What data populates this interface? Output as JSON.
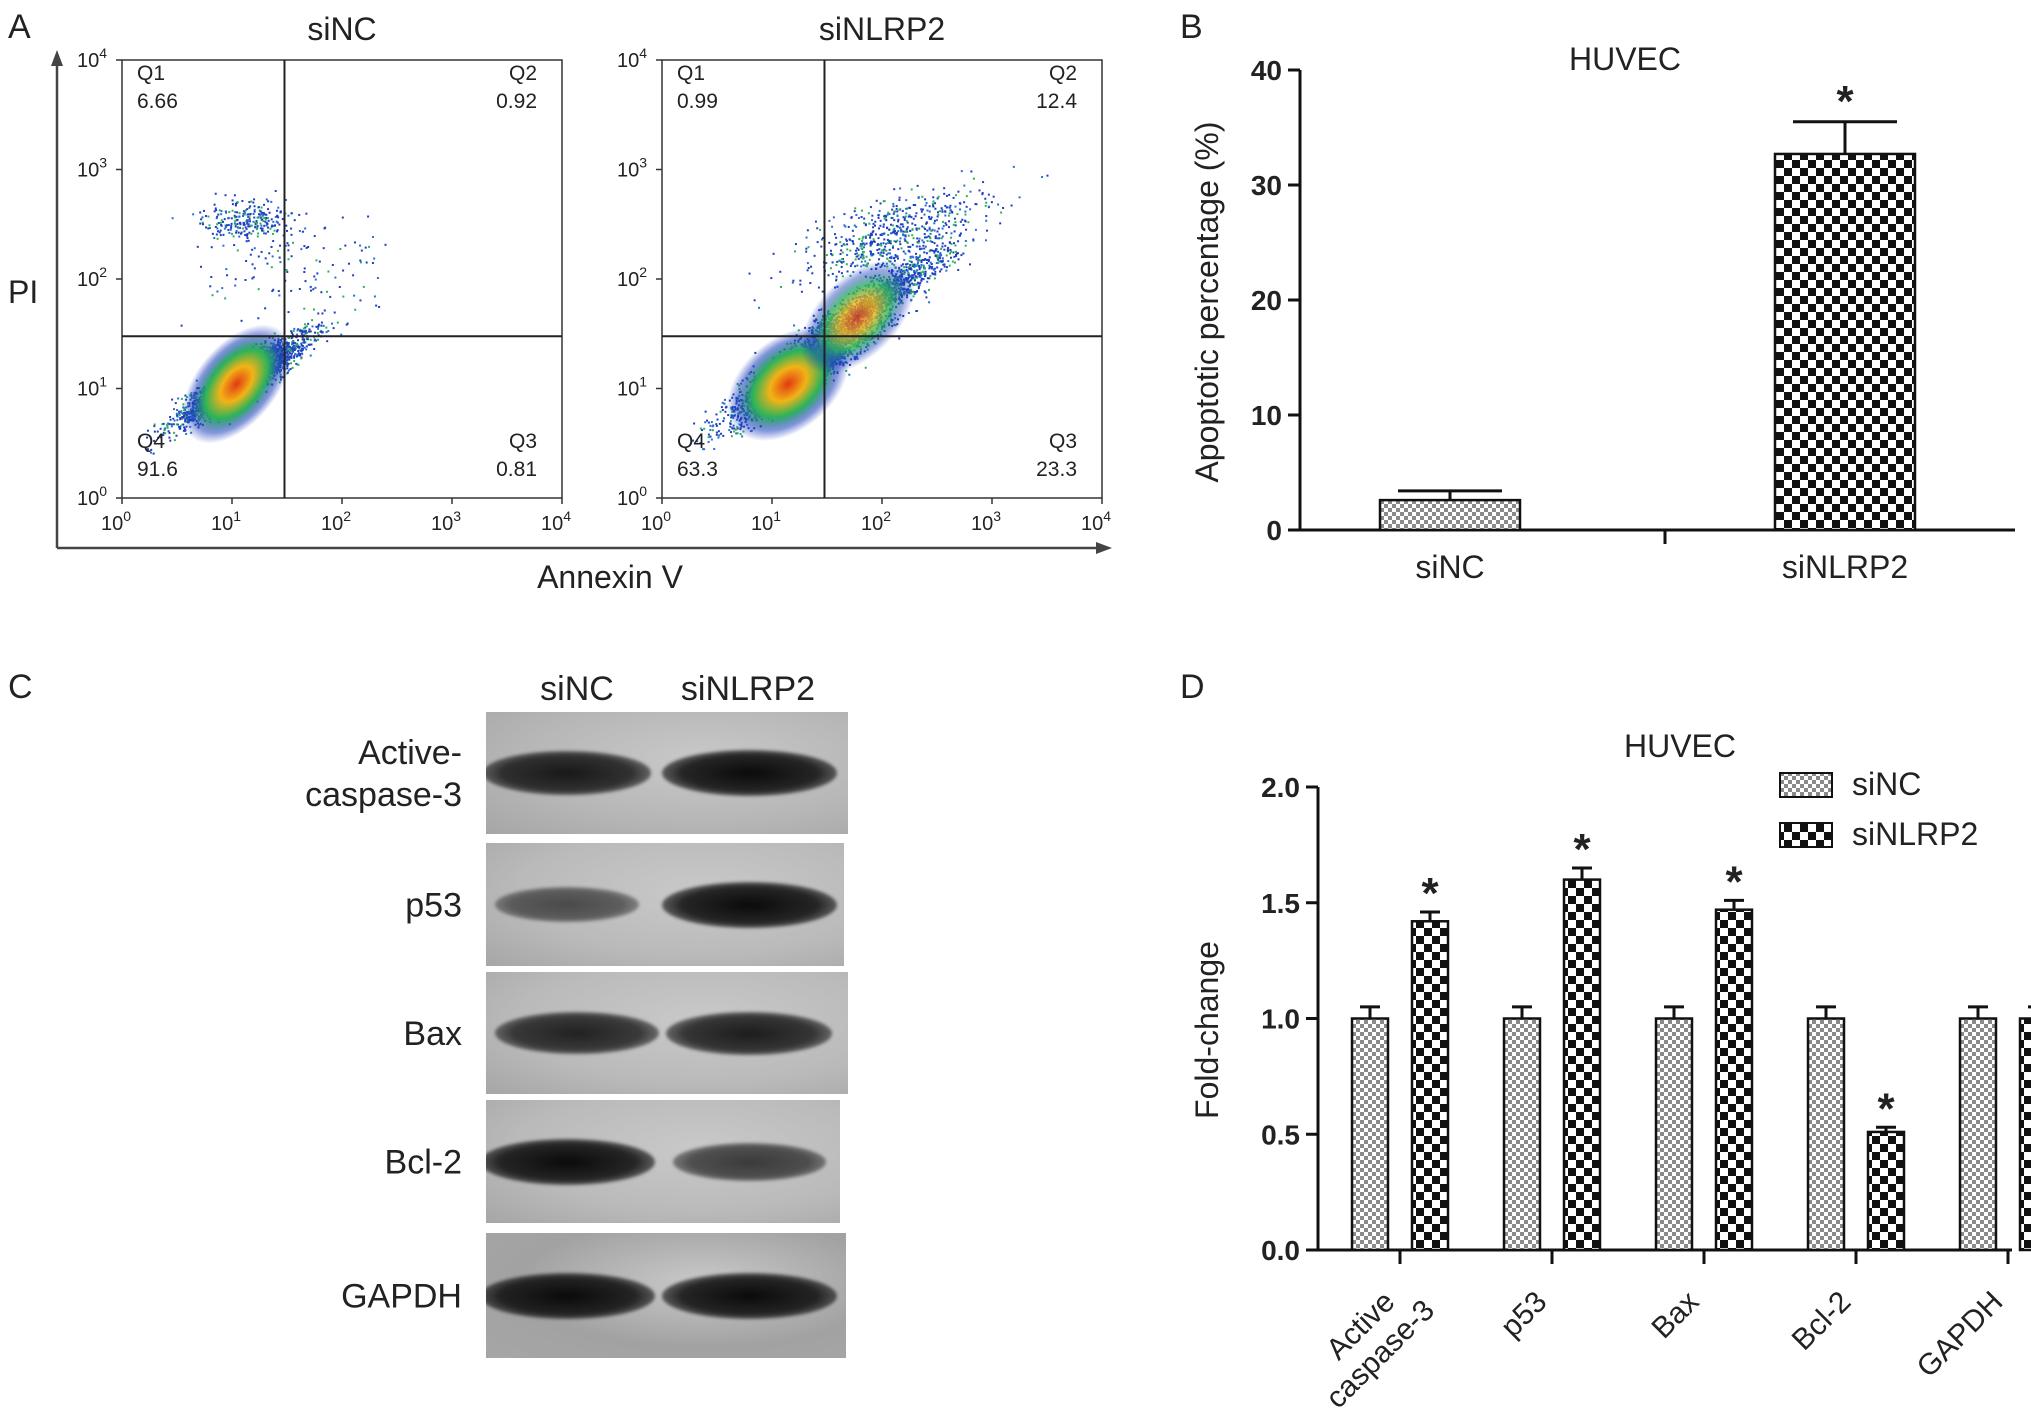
{
  "panel_letters": [
    "A",
    "B",
    "C",
    "D"
  ],
  "colors": {
    "ink": "#222222",
    "accent_blue": "#1f3fbf",
    "hot_core": "#e23a12"
  },
  "chart_data": [
    {
      "panel": "A",
      "type": "scatter",
      "subtype": "flow-cytometry-quadrant",
      "xlabel": "Annexin V",
      "ylabel": "PI",
      "axis_scale": "log",
      "xlim": [
        1,
        10000
      ],
      "ylim": [
        1,
        10000
      ],
      "tick_base": "10",
      "tick_exponents": [
        "0",
        "1",
        "2",
        "3",
        "4"
      ],
      "gate": {
        "x": 30,
        "y": 30
      },
      "plots": [
        {
          "title": "siNC",
          "quadrants": [
            {
              "name": "Q1",
              "value": "6.66"
            },
            {
              "name": "Q2",
              "value": "0.92"
            },
            {
              "name": "Q3",
              "value": "0.81"
            },
            {
              "name": "Q4",
              "value": "91.6"
            }
          ]
        },
        {
          "title": "siNLRP2",
          "quadrants": [
            {
              "name": "Q1",
              "value": "0.99"
            },
            {
              "name": "Q2",
              "value": "12.4"
            },
            {
              "name": "Q3",
              "value": "23.3"
            },
            {
              "name": "Q4",
              "value": "63.3"
            }
          ]
        }
      ]
    },
    {
      "panel": "B",
      "type": "bar",
      "title": "HUVEC",
      "ylabel": "Apoptotic percentage (%)",
      "ylim": [
        0,
        40
      ],
      "yticks": [
        "0",
        "10",
        "20",
        "30",
        "40"
      ],
      "categories": [
        "siNC",
        "siNLRP2"
      ],
      "values": [
        2.6,
        32.7
      ],
      "errors": [
        0.8,
        2.8
      ],
      "significance": [
        "",
        "*"
      ],
      "patterns": [
        "fine-check",
        "coarse-check"
      ]
    },
    {
      "panel": "C",
      "type": "table",
      "subtype": "western-blot",
      "columns": [
        "siNC",
        "siNLRP2"
      ],
      "rows": [
        {
          "label_lines": [
            "Active-",
            "caspase-3"
          ],
          "band_intensity": [
            0.88,
            1.0
          ]
        },
        {
          "label_lines": [
            "p53"
          ],
          "band_intensity": [
            0.45,
            1.0
          ]
        },
        {
          "label_lines": [
            "Bax"
          ],
          "band_intensity": [
            0.8,
            0.85
          ]
        },
        {
          "label_lines": [
            "Bcl-2"
          ],
          "band_intensity": [
            1.0,
            0.6
          ]
        },
        {
          "label_lines": [
            "GAPDH"
          ],
          "band_intensity": [
            1.0,
            1.0
          ]
        }
      ]
    },
    {
      "panel": "D",
      "type": "bar",
      "title": "HUVEC",
      "ylabel": "Fold-change",
      "ylim": [
        0,
        2.0
      ],
      "yticks": [
        "0.0",
        "0.5",
        "1.0",
        "1.5",
        "2.0"
      ],
      "categories": [
        {
          "lines": [
            "Active",
            "caspase-3"
          ]
        },
        {
          "lines": [
            "p53"
          ]
        },
        {
          "lines": [
            "Bax"
          ]
        },
        {
          "lines": [
            "Bcl-2"
          ]
        },
        {
          "lines": [
            "GAPDH"
          ]
        }
      ],
      "series": [
        {
          "name": "siNC",
          "pattern": "fine-check",
          "values": [
            1.0,
            1.0,
            1.0,
            1.0,
            1.0
          ],
          "errors": [
            0.05,
            0.05,
            0.05,
            0.05,
            0.05
          ],
          "significance": [
            "",
            "",
            "",
            "",
            ""
          ]
        },
        {
          "name": "siNLRP2",
          "pattern": "coarse-check",
          "values": [
            1.42,
            1.6,
            1.47,
            0.51,
            1.0
          ],
          "errors": [
            0.04,
            0.05,
            0.04,
            0.02,
            0.05
          ],
          "significance": [
            "*",
            "*",
            "*",
            "*",
            ""
          ]
        }
      ],
      "legend_position": "top-right"
    }
  ]
}
